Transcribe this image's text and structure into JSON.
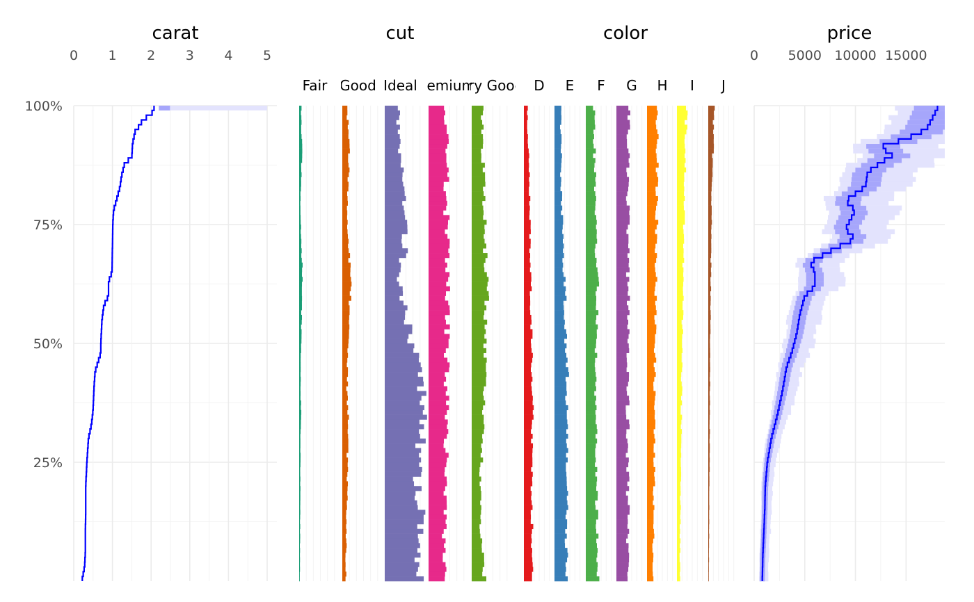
{
  "chart_data": {
    "type": "tableplot",
    "y_axis": {
      "ticks": [
        25,
        50,
        75,
        100
      ],
      "tick_labels": [
        "25%",
        "50%",
        "75%",
        "100%"
      ],
      "range": [
        0,
        100
      ],
      "unit": "percent of rows sorted by carat"
    },
    "bins": 100,
    "panels": [
      {
        "key": "carat",
        "title": "carat",
        "type": "numeric",
        "axis_ticks": [
          0,
          1,
          2,
          3,
          4,
          5
        ],
        "axis_tick_labels": [
          "0",
          "1",
          "2",
          "3",
          "4",
          "5"
        ],
        "xlim": [
          0,
          5
        ],
        "line_color": "#0000ff",
        "band_color": "#6666ff",
        "mean_profile": [
          [
            0,
            0.21
          ],
          [
            3,
            0.28
          ],
          [
            6,
            0.3
          ],
          [
            10,
            0.3
          ],
          [
            15,
            0.31
          ],
          [
            20,
            0.31
          ],
          [
            25,
            0.34
          ],
          [
            30,
            0.38
          ],
          [
            33,
            0.46
          ],
          [
            36,
            0.5
          ],
          [
            40,
            0.52
          ],
          [
            44,
            0.55
          ],
          [
            48,
            0.7
          ],
          [
            50,
            0.7
          ],
          [
            55,
            0.73
          ],
          [
            58,
            0.78
          ],
          [
            60,
            0.9
          ],
          [
            63,
            0.9
          ],
          [
            65,
            0.99
          ],
          [
            70,
            1.0
          ],
          [
            75,
            1.01
          ],
          [
            78,
            1.03
          ],
          [
            80,
            1.1
          ],
          [
            83,
            1.2
          ],
          [
            85,
            1.23
          ],
          [
            88,
            1.32
          ],
          [
            89,
            1.5
          ],
          [
            92,
            1.52
          ],
          [
            95,
            1.6
          ],
          [
            96,
            1.75
          ],
          [
            97,
            1.75
          ],
          [
            98,
            2.0
          ],
          [
            100,
            2.1
          ]
        ],
        "band_extent": {
          "from_bin": 99,
          "to_bin": 100,
          "min": 2.2,
          "max": 5.0
        }
      },
      {
        "key": "cut",
        "title": "cut",
        "type": "categorical",
        "categories": [
          "Fair",
          "Good",
          "Ideal",
          "Premium",
          "Very Good"
        ],
        "category_labels_shown": [
          "Fair",
          "Good",
          "Ideal",
          "Premium",
          "Very Good"
        ],
        "colors": [
          "#1b9e77",
          "#d95f02",
          "#7570b3",
          "#e7298a",
          "#66a61e"
        ],
        "profile_note": "proportion of each category per bin (approximate)",
        "profiles": [
          [
            [
              0,
              0.01
            ],
            [
              30,
              0.02
            ],
            [
              35,
              0.03
            ],
            [
              40,
              0.02
            ],
            [
              60,
              0.04
            ],
            [
              65,
              0.05
            ],
            [
              70,
              0.03
            ],
            [
              80,
              0.02
            ],
            [
              90,
              0.04
            ],
            [
              100,
              0.03
            ]
          ],
          [
            [
              0,
              0.05
            ],
            [
              30,
              0.08
            ],
            [
              35,
              0.09
            ],
            [
              40,
              0.07
            ],
            [
              50,
              0.08
            ],
            [
              60,
              0.12
            ],
            [
              65,
              0.12
            ],
            [
              70,
              0.09
            ],
            [
              80,
              0.08
            ],
            [
              90,
              0.1
            ],
            [
              100,
              0.07
            ]
          ],
          [
            [
              0,
              0.5
            ],
            [
              10,
              0.52
            ],
            [
              20,
              0.5
            ],
            [
              40,
              0.55
            ],
            [
              50,
              0.4
            ],
            [
              60,
              0.25
            ],
            [
              65,
              0.2
            ],
            [
              70,
              0.3
            ],
            [
              80,
              0.3
            ],
            [
              90,
              0.22
            ],
            [
              100,
              0.2
            ]
          ],
          [
            [
              0,
              0.22
            ],
            [
              20,
              0.25
            ],
            [
              40,
              0.26
            ],
            [
              60,
              0.28
            ],
            [
              80,
              0.26
            ],
            [
              100,
              0.27
            ]
          ],
          [
            [
              0,
              0.2
            ],
            [
              10,
              0.12
            ],
            [
              20,
              0.13
            ],
            [
              40,
              0.18
            ],
            [
              60,
              0.22
            ],
            [
              70,
              0.2
            ],
            [
              80,
              0.18
            ],
            [
              90,
              0.16
            ],
            [
              100,
              0.16
            ]
          ]
        ]
      },
      {
        "key": "color",
        "title": "color",
        "type": "categorical",
        "categories": [
          "D",
          "E",
          "F",
          "G",
          "H",
          "I",
          "J"
        ],
        "category_labels_shown": [
          "D",
          "E",
          "F",
          "G",
          "H",
          "I",
          "J"
        ],
        "colors": [
          "#e41a1c",
          "#377eb8",
          "#4daf4a",
          "#984ea3",
          "#ff7f00",
          "#ffff33",
          "#a65628"
        ],
        "profile_note": "proportion of each category per bin (approximate)",
        "profiles": [
          [
            [
              0,
              0.14
            ],
            [
              20,
              0.14
            ],
            [
              40,
              0.15
            ],
            [
              60,
              0.12
            ],
            [
              80,
              0.1
            ],
            [
              100,
              0.06
            ]
          ],
          [
            [
              0,
              0.22
            ],
            [
              20,
              0.2
            ],
            [
              40,
              0.22
            ],
            [
              60,
              0.18
            ],
            [
              80,
              0.12
            ],
            [
              100,
              0.1
            ]
          ],
          [
            [
              0,
              0.2
            ],
            [
              20,
              0.18
            ],
            [
              40,
              0.17
            ],
            [
              60,
              0.2
            ],
            [
              80,
              0.16
            ],
            [
              100,
              0.14
            ]
          ],
          [
            [
              0,
              0.18
            ],
            [
              20,
              0.2
            ],
            [
              40,
              0.19
            ],
            [
              60,
              0.2
            ],
            [
              80,
              0.2
            ],
            [
              100,
              0.22
            ]
          ],
          [
            [
              0,
              0.1
            ],
            [
              20,
              0.12
            ],
            [
              40,
              0.13
            ],
            [
              60,
              0.15
            ],
            [
              80,
              0.17
            ],
            [
              100,
              0.18
            ]
          ],
          [
            [
              0,
              0.05
            ],
            [
              20,
              0.06
            ],
            [
              40,
              0.08
            ],
            [
              60,
              0.1
            ],
            [
              80,
              0.13
            ],
            [
              100,
              0.16
            ]
          ],
          [
            [
              0,
              0.01
            ],
            [
              20,
              0.02
            ],
            [
              40,
              0.03
            ],
            [
              60,
              0.04
            ],
            [
              80,
              0.06
            ],
            [
              100,
              0.1
            ]
          ]
        ]
      },
      {
        "key": "price",
        "title": "price",
        "type": "numeric",
        "axis_ticks": [
          0,
          5000,
          10000,
          15000
        ],
        "axis_tick_labels": [
          "0",
          "5000",
          "10000",
          "15000"
        ],
        "xlim": [
          0,
          18823
        ],
        "line_color": "#0000ff",
        "band_color": "#6666ff",
        "mean_profile": [
          [
            0,
            800
          ],
          [
            5,
            850
          ],
          [
            10,
            950
          ],
          [
            15,
            1050
          ],
          [
            20,
            1100
          ],
          [
            25,
            1300
          ],
          [
            30,
            1700
          ],
          [
            35,
            2300
          ],
          [
            40,
            2800
          ],
          [
            45,
            3200
          ],
          [
            48,
            3700
          ],
          [
            52,
            4200
          ],
          [
            56,
            4500
          ],
          [
            60,
            5000
          ],
          [
            62,
            6000
          ],
          [
            65,
            6000
          ],
          [
            67,
            5500
          ],
          [
            70,
            8000
          ],
          [
            72,
            10000
          ],
          [
            74,
            9000
          ],
          [
            78,
            10000
          ],
          [
            80,
            9000
          ],
          [
            83,
            11000
          ],
          [
            86,
            11200
          ],
          [
            88,
            12500
          ],
          [
            90,
            14000
          ],
          [
            91,
            12000
          ],
          [
            93,
            15000
          ],
          [
            95,
            17000
          ],
          [
            97,
            17500
          ],
          [
            99,
            18000
          ],
          [
            100,
            18200
          ]
        ]
      }
    ]
  }
}
